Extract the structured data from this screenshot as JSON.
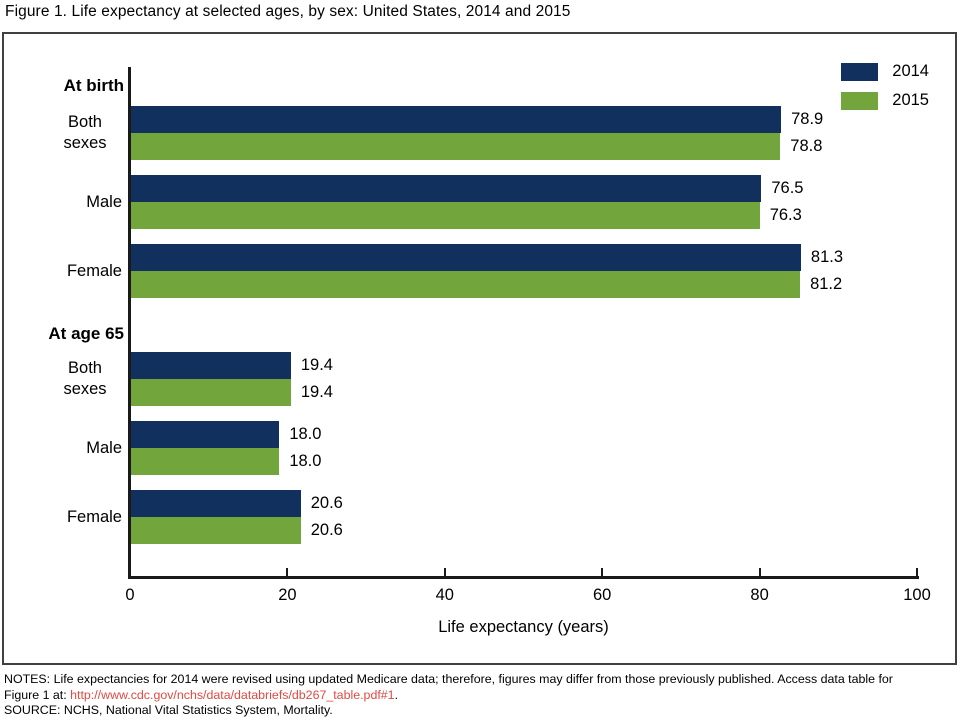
{
  "title": "Figure 1. Life expectancy at selected ages, by sex: United States, 2014 and 2015",
  "colors": {
    "bar_2014": "#12305e",
    "bar_2015": "#72a63d",
    "axis": "#1a1a1a",
    "frame_border": "#404040",
    "link": "#e04a42"
  },
  "legend": {
    "items": [
      {
        "label": "2014",
        "color": "#12305e"
      },
      {
        "label": "2015",
        "color": "#72a63d"
      }
    ]
  },
  "chart_data": {
    "type": "bar",
    "orientation": "horizontal",
    "title": "Figure 1. Life expectancy at selected ages, by sex: United States, 2014 and 2015",
    "xlabel": "Life expectancy (years)",
    "xlim": [
      0,
      100
    ],
    "xticks": [
      0,
      20,
      40,
      60,
      80,
      100
    ],
    "grid": false,
    "legend_position": "top-right",
    "value_decimals": 1,
    "series": [
      {
        "name": "2014",
        "color": "#12305e"
      },
      {
        "name": "2015",
        "color": "#72a63d"
      }
    ],
    "groups": [
      {
        "header": "At birth",
        "rows": [
          {
            "label": "Both sexes",
            "2014": 78.9,
            "2015": 78.8
          },
          {
            "label": "Male",
            "2014": 76.5,
            "2015": 76.3
          },
          {
            "label": "Female",
            "2014": 81.3,
            "2015": 81.2
          }
        ]
      },
      {
        "header": "At age 65",
        "rows": [
          {
            "label": "Both sexes",
            "2014": 19.4,
            "2015": 19.4
          },
          {
            "label": "Male",
            "2014": 18.0,
            "2015": 18.0
          },
          {
            "label": "Female",
            "2014": 20.6,
            "2015": 20.6
          }
        ]
      }
    ]
  },
  "notes": {
    "line1": "NOTES: Life expectancies for 2014 were revised using updated Medicare data; therefore, figures may differ from those previously published. Access data table for",
    "line2_prefix": "Figure 1 at: ",
    "link": "http://www.cdc.gov/nchs/data/databriefs/db267_table.pdf#1",
    "line2_suffix": ".",
    "source": "SOURCE: NCHS, National Vital Statistics System, Mortality."
  }
}
